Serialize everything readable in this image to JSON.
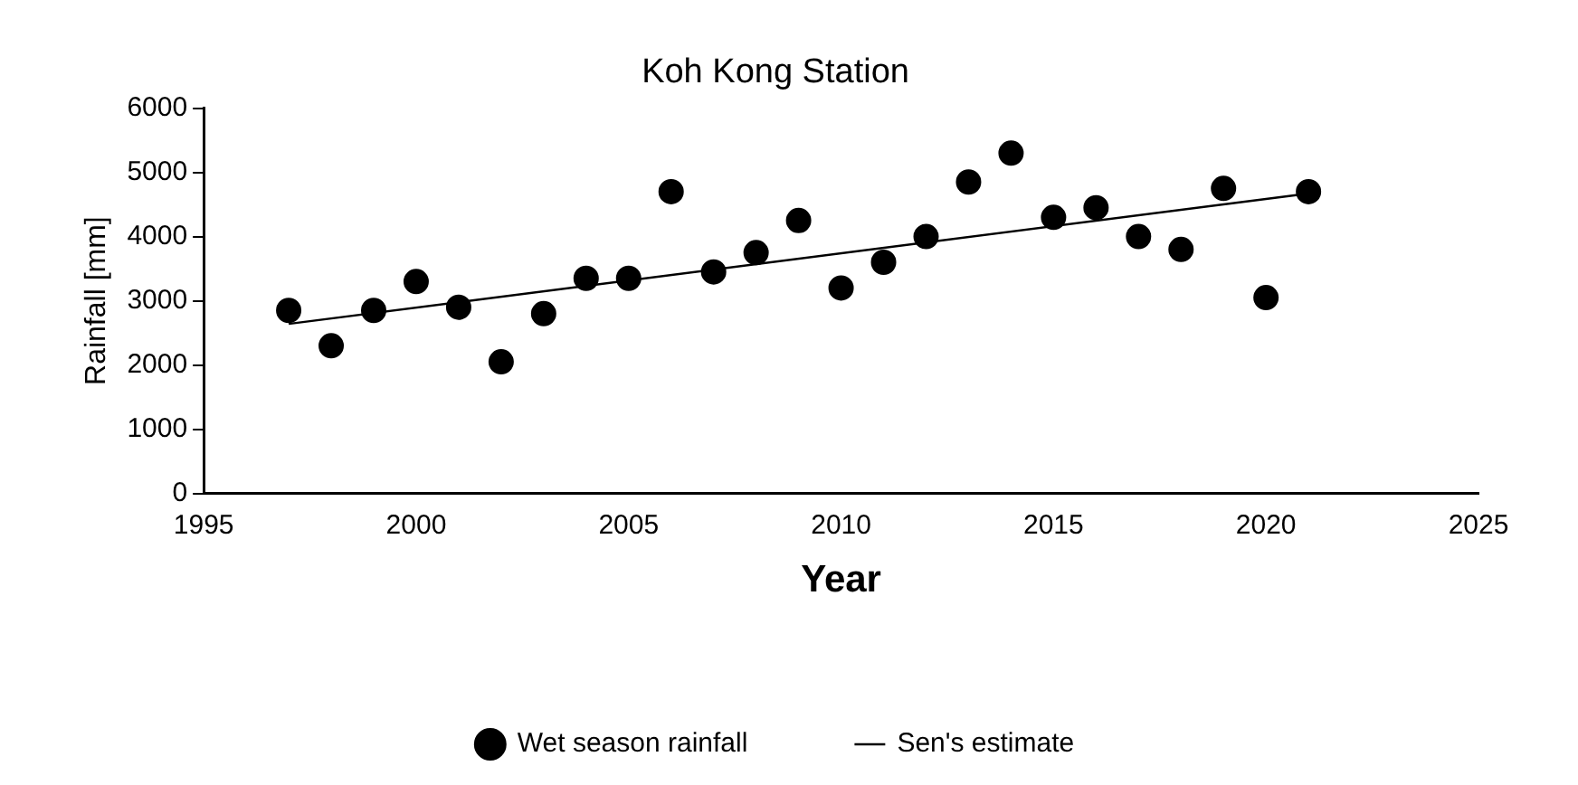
{
  "chart_data": {
    "type": "scatter",
    "title": "Koh Kong Station",
    "xlabel": "Year",
    "ylabel": "Rainfall [mm]",
    "xlim": [
      1995,
      2025
    ],
    "xticks": [
      1995,
      2000,
      2005,
      2010,
      2015,
      2020,
      2025
    ],
    "ylim": [
      0,
      6000
    ],
    "yticks": [
      0,
      1000,
      2000,
      3000,
      4000,
      5000,
      6000
    ],
    "grid": false,
    "legend": "bottom",
    "marker": "circle",
    "series": [
      {
        "name": "Wet season rainfall",
        "color": "#000000",
        "x": [
          1997,
          1998,
          1999,
          2000,
          2001,
          2002,
          2003,
          2004,
          2005,
          2006,
          2007,
          2008,
          2009,
          2010,
          2011,
          2012,
          2013,
          2014,
          2015,
          2016,
          2017,
          2018,
          2019,
          2020,
          2021
        ],
        "values": [
          2850,
          2300,
          2850,
          3300,
          2900,
          2050,
          2800,
          3350,
          3350,
          4700,
          3450,
          3750,
          4250,
          3200,
          3600,
          4000,
          4850,
          5300,
          4300,
          4450,
          4000,
          3800,
          4750,
          3050,
          4700
        ]
      },
      {
        "name": "Sen's estimate",
        "type": "line",
        "color": "#000000",
        "marker": "none",
        "x": [
          1997,
          2021
        ],
        "values": [
          2640,
          4670
        ]
      }
    ]
  }
}
